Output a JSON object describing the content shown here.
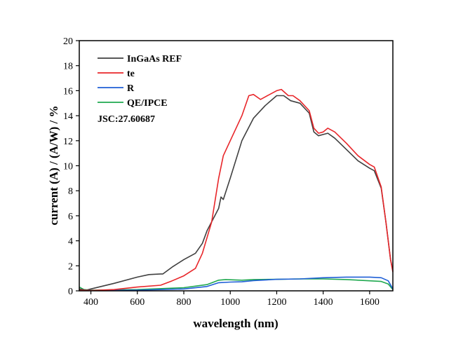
{
  "chart_data": {
    "type": "line",
    "title": "",
    "xlabel": "wavelength (nm)",
    "ylabel": "current (A) / (A/W) / %",
    "xlim": [
      350,
      1700
    ],
    "ylim": [
      0,
      20
    ],
    "xticks": [
      400,
      600,
      800,
      1000,
      1200,
      1400,
      1600
    ],
    "yticks": [
      0,
      2,
      4,
      6,
      8,
      10,
      12,
      14,
      16,
      18,
      20
    ],
    "grid": false,
    "legend_position": "top-left",
    "annotation": "JSC:27.60687",
    "series": [
      {
        "name": "InGaAs REF",
        "color": "#404040",
        "x": [
          350,
          380,
          400,
          500,
          600,
          650,
          700,
          710,
          750,
          800,
          850,
          880,
          900,
          950,
          960,
          970,
          1000,
          1050,
          1100,
          1150,
          1200,
          1230,
          1260,
          1300,
          1340,
          1360,
          1380,
          1400,
          1420,
          1450,
          1500,
          1550,
          1600,
          1620,
          1650,
          1670,
          1690,
          1700
        ],
        "y": [
          0.15,
          0.05,
          0.15,
          0.6,
          1.1,
          1.3,
          1.35,
          1.35,
          1.9,
          2.5,
          3.0,
          3.8,
          4.8,
          6.6,
          7.5,
          7.3,
          9.0,
          12.0,
          13.8,
          14.8,
          15.6,
          15.6,
          15.2,
          15.0,
          14.2,
          12.7,
          12.4,
          12.5,
          12.6,
          12.2,
          11.3,
          10.4,
          9.8,
          9.6,
          8.2,
          5.5,
          2.5,
          1.6
        ]
      },
      {
        "name": "te",
        "color": "#e8262a",
        "x": [
          350,
          400,
          500,
          600,
          700,
          750,
          800,
          850,
          880,
          920,
          950,
          970,
          1000,
          1050,
          1080,
          1100,
          1130,
          1150,
          1200,
          1220,
          1250,
          1270,
          1300,
          1340,
          1360,
          1380,
          1400,
          1420,
          1450,
          1500,
          1550,
          1600,
          1620,
          1650,
          1670,
          1690,
          1700
        ],
        "y": [
          0.05,
          0.02,
          0.1,
          0.3,
          0.45,
          0.8,
          1.2,
          1.8,
          3.0,
          5.5,
          9.0,
          10.8,
          12.0,
          14.0,
          15.6,
          15.7,
          15.3,
          15.5,
          16.0,
          16.1,
          15.6,
          15.6,
          15.2,
          14.4,
          13.0,
          12.6,
          12.7,
          13.0,
          12.7,
          11.8,
          10.8,
          10.1,
          9.9,
          8.3,
          5.5,
          2.5,
          1.5
        ]
      },
      {
        "name": "R",
        "color": "#1f5fd6",
        "x": [
          350,
          400,
          600,
          800,
          900,
          950,
          1000,
          1050,
          1100,
          1200,
          1300,
          1400,
          1500,
          1600,
          1650,
          1680,
          1700
        ],
        "y": [
          0.05,
          0.03,
          0.05,
          0.15,
          0.35,
          0.65,
          0.7,
          0.72,
          0.82,
          0.92,
          0.95,
          1.05,
          1.1,
          1.1,
          1.05,
          0.8,
          0.15
        ]
      },
      {
        "name": "QE/IPCE",
        "color": "#1fa84f",
        "x": [
          350,
          370,
          400,
          600,
          800,
          900,
          950,
          980,
          1050,
          1100,
          1200,
          1300,
          1400,
          1500,
          1600,
          1650,
          1680,
          1700
        ],
        "y": [
          0.3,
          0.1,
          0.05,
          0.1,
          0.25,
          0.5,
          0.85,
          0.9,
          0.85,
          0.9,
          0.92,
          0.95,
          0.95,
          0.9,
          0.8,
          0.75,
          0.55,
          0.1
        ]
      }
    ]
  }
}
